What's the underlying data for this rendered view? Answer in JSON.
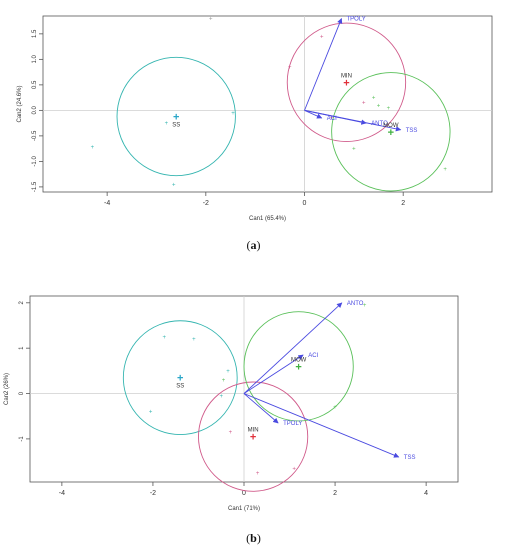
{
  "chart_data": [
    {
      "type": "scatter",
      "panel_label": "a",
      "xlabel": "Can1 (65.4%)",
      "ylabel": "Can2 (24.6%)",
      "xlim": [
        -5.3,
        3.8
      ],
      "ylim": [
        -1.6,
        1.85
      ],
      "xticks": [
        -4,
        -2,
        0,
        2
      ],
      "yticks": [
        -1.5,
        -1.0,
        -0.5,
        0.0,
        0.5,
        1.0,
        1.5
      ],
      "ytick_labels": [
        "-1.5",
        "-1.0",
        "-0.5",
        "0.0",
        "0.5",
        "1.0",
        "1.5"
      ],
      "groups": [
        {
          "name": "SS",
          "color": "#2aa6c8",
          "circle_color": "#35b5b0",
          "center": [
            -2.6,
            -0.12
          ],
          "radius": 1.2,
          "points": [
            [
              -4.3,
              -0.72
            ],
            [
              -1.45,
              -0.05
            ],
            [
              -2.65,
              -1.45
            ],
            [
              -2.8,
              -0.25
            ]
          ]
        },
        {
          "name": "MIN",
          "color": "#e0303a",
          "circle_color": "#d05a8a",
          "center": [
            0.85,
            0.55
          ],
          "radius": 1.2,
          "points": [
            [
              0.35,
              1.45
            ],
            [
              -0.3,
              0.85
            ],
            [
              1.2,
              0.15
            ],
            [
              0.55,
              -0.15
            ]
          ]
        },
        {
          "name": "MOW",
          "color": "#40b040",
          "circle_color": "#5ac05a",
          "center": [
            1.75,
            -0.42
          ],
          "radius": 1.2,
          "points": [
            [
              1.4,
              0.25
            ],
            [
              1.7,
              0.05
            ],
            [
              1.0,
              -0.75
            ],
            [
              2.85,
              -1.15
            ],
            [
              1.5,
              0.1
            ]
          ]
        }
      ],
      "extra_points": [
        [
          -1.9,
          1.8
        ]
      ],
      "vectors": [
        {
          "label": "TPOLY",
          "x": 0.75,
          "y": 1.8
        },
        {
          "label": "ACI",
          "x": 0.35,
          "y": -0.15
        },
        {
          "label": "ANTO",
          "x": 1.25,
          "y": -0.25
        },
        {
          "label": "TSS",
          "x": 1.95,
          "y": -0.38
        }
      ],
      "vector_color": "#4a4ae0"
    },
    {
      "type": "scatter",
      "panel_label": "b",
      "xlabel": "Can1 (71%)",
      "ylabel": "Can2 (26%)",
      "xlim": [
        -4.7,
        4.7
      ],
      "ylim": [
        -1.95,
        2.15
      ],
      "xticks": [
        -4,
        -2,
        0,
        2,
        4
      ],
      "yticks": [
        -1,
        0,
        1,
        2
      ],
      "ytick_labels": [
        "-1",
        "0",
        "1",
        "2"
      ],
      "groups": [
        {
          "name": "SS",
          "color": "#2aa6c8",
          "circle_color": "#35b5b0",
          "center": [
            -1.4,
            0.35
          ],
          "radius": 1.25,
          "points": [
            [
              -1.75,
              1.25
            ],
            [
              -1.1,
              1.2
            ],
            [
              -2.05,
              -0.4
            ],
            [
              -0.35,
              0.5
            ],
            [
              -0.5,
              -0.05
            ]
          ]
        },
        {
          "name": "MIN",
          "color": "#e0303a",
          "circle_color": "#d05a8a",
          "center": [
            0.2,
            -0.95
          ],
          "radius": 1.2,
          "points": [
            [
              0.3,
              -1.75
            ],
            [
              1.1,
              -1.65
            ],
            [
              -0.3,
              -0.85
            ]
          ]
        },
        {
          "name": "MOW",
          "color": "#40b040",
          "circle_color": "#5ac05a",
          "center": [
            1.2,
            0.6
          ],
          "radius": 1.2,
          "points": [
            [
              2.0,
              -0.3
            ],
            [
              2.65,
              1.95
            ],
            [
              -0.45,
              0.3
            ]
          ]
        }
      ],
      "extra_points": [],
      "vectors": [
        {
          "label": "ANTO",
          "x": 2.15,
          "y": 2.0
        },
        {
          "label": "ACI",
          "x": 1.3,
          "y": 0.85
        },
        {
          "label": "TPOLY",
          "x": 0.75,
          "y": -0.65
        },
        {
          "label": "TSS",
          "x": 3.4,
          "y": -1.4
        }
      ],
      "vector_color": "#4a4ae0"
    }
  ]
}
